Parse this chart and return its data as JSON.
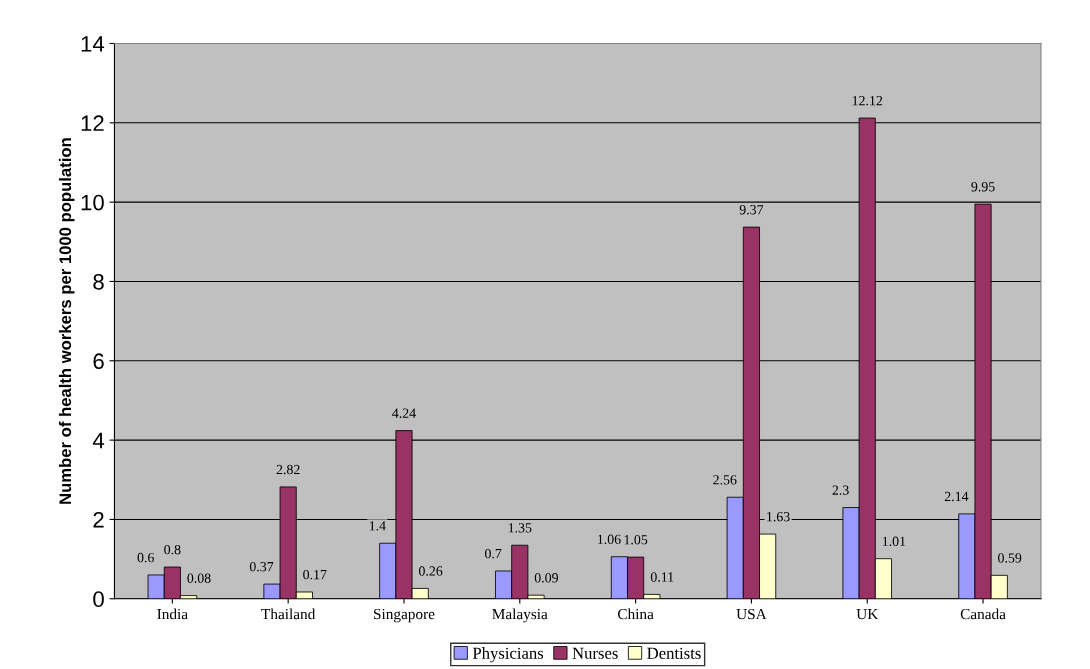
{
  "chart_data": {
    "type": "bar",
    "ylabel": "Number of health workers per 1000 population",
    "categories": [
      "India",
      "Thailand",
      "Singapore",
      "Malaysia",
      "China",
      "USA",
      "UK",
      "Canada"
    ],
    "series": [
      {
        "name": "Physicians",
        "color": "#9999ff",
        "values": [
          0.6,
          0.37,
          1.4,
          0.7,
          1.06,
          2.56,
          2.3,
          2.14
        ]
      },
      {
        "name": "Nurses",
        "color": "#993366",
        "values": [
          0.8,
          2.82,
          4.24,
          1.35,
          1.05,
          9.37,
          12.12,
          9.95
        ]
      },
      {
        "name": "Dentists",
        "color": "#ffffcc",
        "values": [
          0.08,
          0.17,
          0.26,
          0.09,
          0.11,
          1.63,
          1.01,
          0.59
        ]
      }
    ],
    "ylim": [
      0,
      14
    ],
    "yticks": [
      0,
      2,
      4,
      6,
      8,
      10,
      12,
      14
    ],
    "grid": "y",
    "legend": "bottom",
    "data_labels": true
  }
}
